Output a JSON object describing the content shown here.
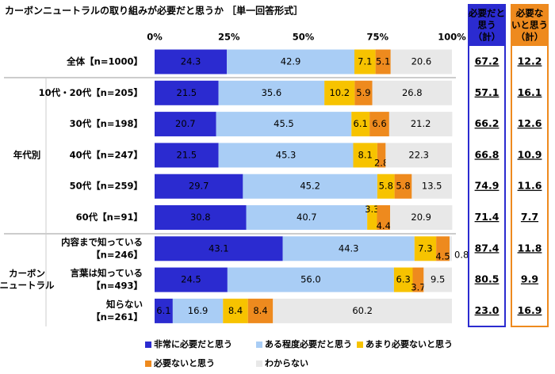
{
  "chart_data": {
    "type": "stacked-bar-horizontal",
    "title": "カーボンニュートラルの取り組みが必要だと思うか ［単一回答形式］",
    "categories": [
      [
        "全体【n=1000】"
      ],
      [
        "10代・20代【n=205】"
      ],
      [
        "30代【n=198】"
      ],
      [
        "40代【n=247】"
      ],
      [
        "50代【n=259】"
      ],
      [
        "60代【n=91】"
      ],
      [
        "内容まで知っている",
        "【n=246】"
      ],
      [
        "言葉は知っている",
        "【n=493】"
      ],
      [
        "知らない",
        "【n=261】"
      ]
    ],
    "groups": [
      [
        "年代別"
      ],
      [
        "カーボン",
        "ニュートラル"
      ]
    ],
    "xlim": [
      0,
      100
    ],
    "xticks": [
      {
        "value": 0,
        "label": "0%"
      },
      {
        "value": 25,
        "label": "25%"
      },
      {
        "value": 50,
        "label": "50%"
      },
      {
        "value": 75,
        "label": "75%"
      },
      {
        "value": 100,
        "label": "100%"
      }
    ],
    "series": [
      {
        "name": "非常に必要だと思う",
        "color": "#2b2bd0",
        "text_color": "#ffffff",
        "values": [
          24.3,
          21.5,
          20.7,
          21.5,
          29.7,
          30.8,
          43.1,
          24.5,
          6.1
        ]
      },
      {
        "name": "ある程度必要だと思う",
        "color": "#a9cdf5",
        "text_color": "#000000",
        "values": [
          42.9,
          35.6,
          45.5,
          45.3,
          45.2,
          40.7,
          44.3,
          56.0,
          16.9
        ],
        "value_labels": [
          "42.9",
          "35.6",
          "45.5",
          "45.3",
          "45.2",
          "40.7",
          "44.3",
          "56.0",
          "16.9"
        ]
      },
      {
        "name": "あまり必要ないと思う",
        "color": "#f7c300",
        "text_color": "#000000",
        "values": [
          7.1,
          10.2,
          6.1,
          8.1,
          5.8,
          3.3,
          7.3,
          6.3,
          8.4
        ]
      },
      {
        "name": "必要ないと思う",
        "color": "#ee8a1e",
        "text_color": "#000000",
        "values": [
          5.1,
          5.9,
          6.6,
          2.8,
          5.8,
          4.4,
          4.5,
          3.7,
          8.4
        ]
      },
      {
        "name": "わからない",
        "color": "#e8e8e8",
        "text_color": "#000000",
        "values": [
          20.6,
          26.8,
          21.2,
          22.3,
          13.5,
          20.9,
          0.8,
          9.5,
          60.2
        ]
      }
    ],
    "summary": [
      {
        "header": [
          "必要だと",
          "思う",
          "（計）"
        ],
        "color": "#2b2bd0",
        "header_text_color": "#ffffff",
        "values": [
          67.2,
          57.1,
          66.2,
          66.8,
          74.9,
          71.4,
          87.4,
          80.5,
          23.0
        ],
        "value_labels": [
          "67.2",
          "57.1",
          "66.2",
          "66.8",
          "74.9",
          "71.4",
          "87.4",
          "80.5",
          "23.0"
        ]
      },
      {
        "header": [
          "必要な",
          "いと思う",
          "（計）"
        ],
        "color": "#ee8a1e",
        "header_text_color": "#000000",
        "values": [
          12.2,
          16.1,
          12.6,
          10.9,
          11.6,
          7.7,
          11.8,
          9.9,
          16.9
        ]
      }
    ]
  }
}
